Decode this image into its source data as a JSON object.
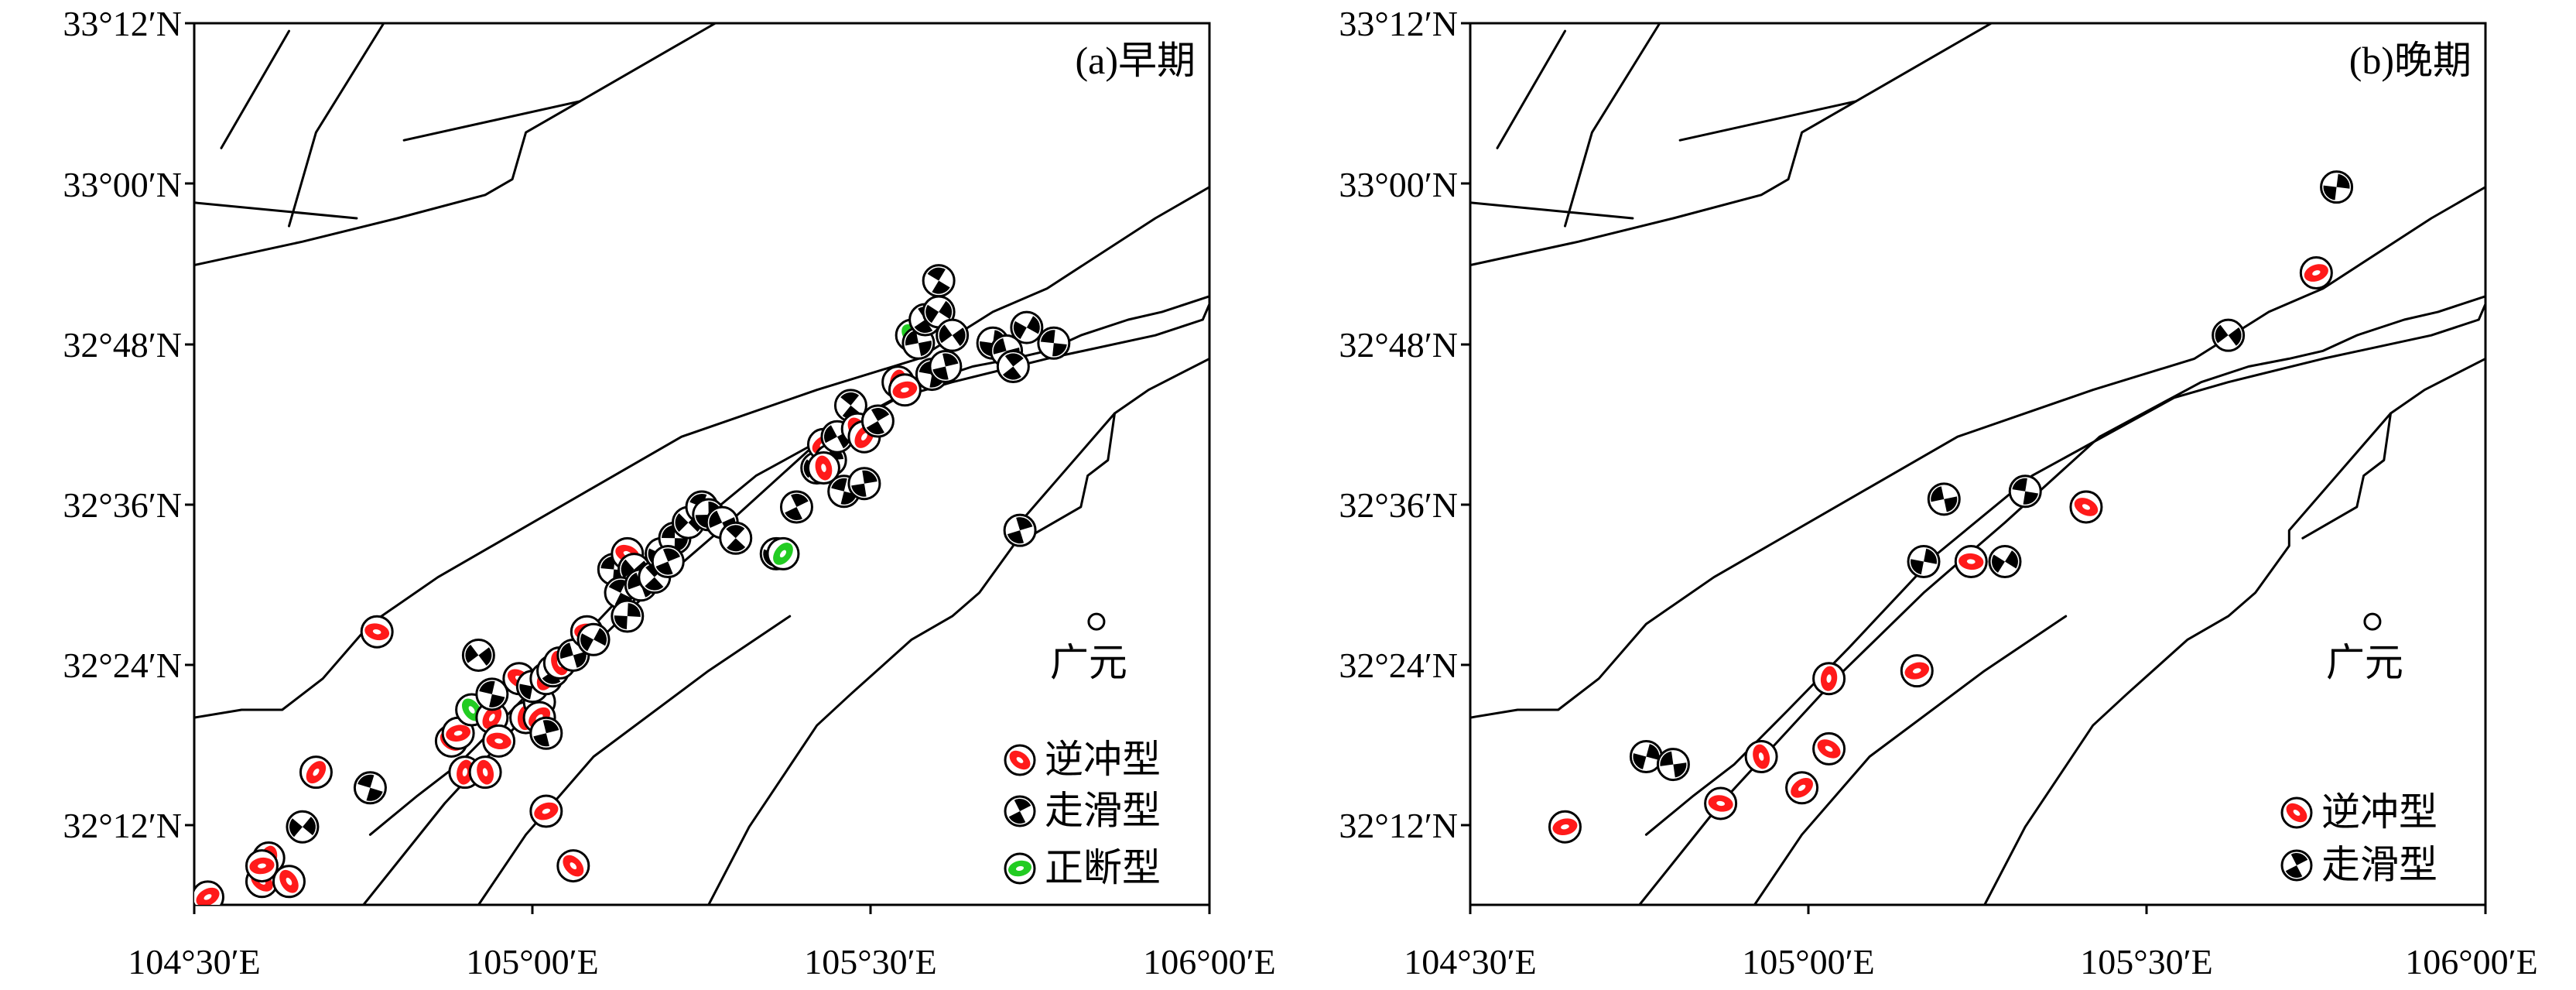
{
  "panels": [
    {
      "id": "early",
      "label": "(a)早期",
      "city": "广元",
      "legend": [
        {
          "type": "thrust",
          "label": "逆冲型"
        },
        {
          "type": "strike",
          "label": "走滑型"
        },
        {
          "type": "normal",
          "label": "正断型"
        }
      ]
    },
    {
      "id": "late",
      "label": "(b)晚期",
      "city": "广元",
      "legend": [
        {
          "type": "thrust",
          "label": "逆冲型"
        },
        {
          "type": "strike",
          "label": "走滑型"
        }
      ]
    }
  ],
  "axes": {
    "lon_ticks": [
      "104°30′E",
      "105°00′E",
      "105°30′E",
      "106°00′E"
    ],
    "lat_ticks": [
      "33°12′N",
      "33°00′N",
      "32°48′N",
      "32°36′N",
      "32°24′N",
      "32°12′N"
    ]
  },
  "colors": {
    "thrust": "#ff1a1a",
    "strike": "#000000",
    "normal": "#22cc22",
    "fault": "#000000"
  },
  "map_data": {
    "extent": {
      "lon": [
        104.5,
        106.0
      ],
      "lat": [
        32.07,
        33.2
      ]
    },
    "city": {
      "name": "广元",
      "lon": 105.833,
      "lat": 32.433
    },
    "faults": [
      [
        [
          104.54,
          33.04
        ],
        [
          104.64,
          33.19
        ]
      ],
      [
        [
          104.64,
          32.94
        ],
        [
          104.68,
          33.06
        ],
        [
          104.78,
          33.2
        ]
      ],
      [
        [
          104.81,
          33.05
        ],
        [
          105.07,
          33.1
        ]
      ],
      [
        [
          104.5,
          32.97
        ],
        [
          104.74,
          32.95
        ]
      ],
      [
        [
          104.5,
          32.89
        ],
        [
          104.66,
          32.92
        ],
        [
          104.8,
          32.95
        ],
        [
          104.93,
          32.98
        ],
        [
          104.97,
          33.0
        ],
        [
          104.99,
          33.06
        ],
        [
          105.07,
          33.1
        ],
        [
          105.21,
          33.17
        ],
        [
          105.27,
          33.2
        ]
      ],
      [
        [
          104.5,
          32.31
        ],
        [
          104.57,
          32.32
        ],
        [
          104.63,
          32.32
        ],
        [
          104.69,
          32.36
        ],
        [
          104.76,
          32.43
        ],
        [
          104.86,
          32.49
        ],
        [
          105.04,
          32.58
        ],
        [
          105.22,
          32.67
        ],
        [
          105.42,
          32.73
        ],
        [
          105.57,
          32.77
        ],
        [
          105.68,
          32.83
        ],
        [
          105.76,
          32.86
        ],
        [
          105.92,
          32.95
        ],
        [
          106.0,
          32.99
        ]
      ],
      [
        [
          104.76,
          32.16
        ],
        [
          104.83,
          32.21
        ],
        [
          104.89,
          32.25
        ],
        [
          104.97,
          32.32
        ],
        [
          105.06,
          32.4
        ],
        [
          105.19,
          32.52
        ],
        [
          105.33,
          32.62
        ],
        [
          105.54,
          32.72
        ],
        [
          105.62,
          32.74
        ],
        [
          105.76,
          32.77
        ],
        [
          105.92,
          32.8
        ],
        [
          105.99,
          32.82
        ],
        [
          106.0,
          32.84
        ]
      ],
      [
        [
          104.75,
          32.07
        ],
        [
          104.87,
          32.2
        ],
        [
          105.04,
          32.36
        ],
        [
          105.17,
          32.47
        ],
        [
          105.29,
          32.56
        ],
        [
          105.43,
          32.67
        ],
        [
          105.58,
          32.74
        ],
        [
          105.65,
          32.76
        ],
        [
          105.71,
          32.77
        ],
        [
          105.76,
          32.78
        ],
        [
          105.81,
          32.8
        ],
        [
          105.88,
          32.82
        ],
        [
          105.93,
          32.83
        ],
        [
          106.0,
          32.85
        ]
      ],
      [
        [
          104.92,
          32.07
        ],
        [
          104.99,
          32.16
        ],
        [
          105.09,
          32.26
        ],
        [
          105.26,
          32.37
        ],
        [
          105.38,
          32.44
        ]
      ],
      [
        [
          105.26,
          32.07
        ],
        [
          105.32,
          32.17
        ],
        [
          105.42,
          32.3
        ],
        [
          105.47,
          32.34
        ],
        [
          105.56,
          32.41
        ],
        [
          105.62,
          32.44
        ],
        [
          105.66,
          32.47
        ],
        [
          105.71,
          32.53
        ],
        [
          105.71,
          32.55
        ],
        [
          105.77,
          32.61
        ],
        [
          105.86,
          32.7
        ],
        [
          105.91,
          32.73
        ],
        [
          106.0,
          32.77
        ]
      ],
      [
        [
          105.73,
          32.54
        ],
        [
          105.81,
          32.58
        ],
        [
          105.82,
          32.62
        ],
        [
          105.85,
          32.64
        ],
        [
          105.86,
          32.7
        ]
      ]
    ],
    "early_events": [
      {
        "lon": 104.52,
        "lat": 32.08,
        "type": "thrust"
      },
      {
        "lon": 104.6,
        "lat": 32.1,
        "type": "thrust"
      },
      {
        "lon": 104.61,
        "lat": 32.13,
        "type": "thrust"
      },
      {
        "lon": 104.6,
        "lat": 32.12,
        "type": "thrust"
      },
      {
        "lon": 104.64,
        "lat": 32.1,
        "type": "thrust"
      },
      {
        "lon": 104.68,
        "lat": 32.24,
        "type": "thrust"
      },
      {
        "lon": 104.77,
        "lat": 32.42,
        "type": "thrust"
      },
      {
        "lon": 104.66,
        "lat": 32.17,
        "type": "strike"
      },
      {
        "lon": 104.76,
        "lat": 32.22,
        "type": "strike"
      },
      {
        "lon": 104.88,
        "lat": 32.28,
        "type": "thrust"
      },
      {
        "lon": 104.9,
        "lat": 32.24,
        "type": "thrust"
      },
      {
        "lon": 104.89,
        "lat": 32.29,
        "type": "thrust"
      },
      {
        "lon": 104.91,
        "lat": 32.32,
        "type": "normal"
      },
      {
        "lon": 104.94,
        "lat": 32.31,
        "type": "thrust"
      },
      {
        "lon": 104.95,
        "lat": 32.28,
        "type": "thrust"
      },
      {
        "lon": 104.93,
        "lat": 32.24,
        "type": "thrust"
      },
      {
        "lon": 104.94,
        "lat": 32.34,
        "type": "strike"
      },
      {
        "lon": 104.98,
        "lat": 32.36,
        "type": "thrust"
      },
      {
        "lon": 104.99,
        "lat": 32.31,
        "type": "thrust"
      },
      {
        "lon": 105.01,
        "lat": 32.33,
        "type": "strike"
      },
      {
        "lon": 105.0,
        "lat": 32.35,
        "type": "strike"
      },
      {
        "lon": 105.02,
        "lat": 32.36,
        "type": "thrust"
      },
      {
        "lon": 105.03,
        "lat": 32.37,
        "type": "strike"
      },
      {
        "lon": 105.04,
        "lat": 32.38,
        "type": "thrust"
      },
      {
        "lon": 105.01,
        "lat": 32.31,
        "type": "thrust"
      },
      {
        "lon": 105.02,
        "lat": 32.29,
        "type": "strike"
      },
      {
        "lon": 104.92,
        "lat": 32.39,
        "type": "strike"
      },
      {
        "lon": 105.02,
        "lat": 32.19,
        "type": "thrust"
      },
      {
        "lon": 105.06,
        "lat": 32.12,
        "type": "thrust"
      },
      {
        "lon": 105.06,
        "lat": 32.39,
        "type": "strike"
      },
      {
        "lon": 105.08,
        "lat": 32.42,
        "type": "thrust"
      },
      {
        "lon": 105.09,
        "lat": 32.41,
        "type": "strike"
      },
      {
        "lon": 105.12,
        "lat": 32.5,
        "type": "strike"
      },
      {
        "lon": 105.14,
        "lat": 32.52,
        "type": "thrust"
      },
      {
        "lon": 105.15,
        "lat": 32.5,
        "type": "strike"
      },
      {
        "lon": 105.13,
        "lat": 32.47,
        "type": "strike"
      },
      {
        "lon": 105.14,
        "lat": 32.44,
        "type": "strike"
      },
      {
        "lon": 105.16,
        "lat": 32.48,
        "type": "strike"
      },
      {
        "lon": 105.18,
        "lat": 32.49,
        "type": "strike"
      },
      {
        "lon": 105.19,
        "lat": 32.52,
        "type": "strike"
      },
      {
        "lon": 105.21,
        "lat": 32.54,
        "type": "strike"
      },
      {
        "lon": 105.2,
        "lat": 32.51,
        "type": "strike"
      },
      {
        "lon": 105.23,
        "lat": 32.56,
        "type": "strike"
      },
      {
        "lon": 105.25,
        "lat": 32.58,
        "type": "strike"
      },
      {
        "lon": 105.26,
        "lat": 32.57,
        "type": "strike"
      },
      {
        "lon": 105.28,
        "lat": 32.56,
        "type": "strike"
      },
      {
        "lon": 105.3,
        "lat": 32.54,
        "type": "strike"
      },
      {
        "lon": 105.36,
        "lat": 32.52,
        "type": "strike"
      },
      {
        "lon": 105.37,
        "lat": 32.52,
        "type": "normal"
      },
      {
        "lon": 105.39,
        "lat": 32.58,
        "type": "strike"
      },
      {
        "lon": 105.42,
        "lat": 32.63,
        "type": "strike"
      },
      {
        "lon": 105.43,
        "lat": 32.66,
        "type": "thrust"
      },
      {
        "lon": 105.44,
        "lat": 32.64,
        "type": "strike"
      },
      {
        "lon": 105.45,
        "lat": 32.67,
        "type": "strike"
      },
      {
        "lon": 105.47,
        "lat": 32.71,
        "type": "strike"
      },
      {
        "lon": 105.48,
        "lat": 32.68,
        "type": "thrust"
      },
      {
        "lon": 105.49,
        "lat": 32.67,
        "type": "thrust"
      },
      {
        "lon": 105.51,
        "lat": 32.69,
        "type": "strike"
      },
      {
        "lon": 105.43,
        "lat": 32.63,
        "type": "thrust"
      },
      {
        "lon": 105.46,
        "lat": 32.6,
        "type": "strike"
      },
      {
        "lon": 105.49,
        "lat": 32.61,
        "type": "strike"
      },
      {
        "lon": 105.54,
        "lat": 32.74,
        "type": "thrust"
      },
      {
        "lon": 105.55,
        "lat": 32.73,
        "type": "thrust"
      },
      {
        "lon": 105.56,
        "lat": 32.8,
        "type": "normal"
      },
      {
        "lon": 105.57,
        "lat": 32.79,
        "type": "strike"
      },
      {
        "lon": 105.58,
        "lat": 32.82,
        "type": "strike"
      },
      {
        "lon": 105.6,
        "lat": 32.83,
        "type": "strike"
      },
      {
        "lon": 105.59,
        "lat": 32.75,
        "type": "strike"
      },
      {
        "lon": 105.61,
        "lat": 32.76,
        "type": "strike"
      },
      {
        "lon": 105.62,
        "lat": 32.8,
        "type": "strike"
      },
      {
        "lon": 105.6,
        "lat": 32.87,
        "type": "strike"
      },
      {
        "lon": 105.68,
        "lat": 32.79,
        "type": "strike"
      },
      {
        "lon": 105.7,
        "lat": 32.78,
        "type": "strike"
      },
      {
        "lon": 105.71,
        "lat": 32.76,
        "type": "strike"
      },
      {
        "lon": 105.73,
        "lat": 32.81,
        "type": "strike"
      },
      {
        "lon": 105.77,
        "lat": 32.79,
        "type": "strike"
      },
      {
        "lon": 105.72,
        "lat": 32.55,
        "type": "strike"
      }
    ],
    "late_events": [
      {
        "lon": 104.64,
        "lat": 32.17,
        "type": "thrust"
      },
      {
        "lon": 104.76,
        "lat": 32.26,
        "type": "strike"
      },
      {
        "lon": 104.8,
        "lat": 32.25,
        "type": "strike"
      },
      {
        "lon": 104.87,
        "lat": 32.2,
        "type": "thrust"
      },
      {
        "lon": 104.93,
        "lat": 32.26,
        "type": "thrust"
      },
      {
        "lon": 104.99,
        "lat": 32.22,
        "type": "thrust"
      },
      {
        "lon": 105.03,
        "lat": 32.27,
        "type": "thrust"
      },
      {
        "lon": 105.03,
        "lat": 32.36,
        "type": "thrust"
      },
      {
        "lon": 105.16,
        "lat": 32.37,
        "type": "thrust"
      },
      {
        "lon": 105.17,
        "lat": 32.51,
        "type": "strike"
      },
      {
        "lon": 105.2,
        "lat": 32.59,
        "type": "strike"
      },
      {
        "lon": 105.24,
        "lat": 32.51,
        "type": "thrust"
      },
      {
        "lon": 105.29,
        "lat": 32.51,
        "type": "strike"
      },
      {
        "lon": 105.32,
        "lat": 32.6,
        "type": "strike"
      },
      {
        "lon": 105.41,
        "lat": 32.58,
        "type": "thrust"
      },
      {
        "lon": 105.62,
        "lat": 32.8,
        "type": "strike"
      },
      {
        "lon": 105.75,
        "lat": 32.88,
        "type": "thrust"
      },
      {
        "lon": 105.78,
        "lat": 32.99,
        "type": "strike"
      }
    ]
  }
}
